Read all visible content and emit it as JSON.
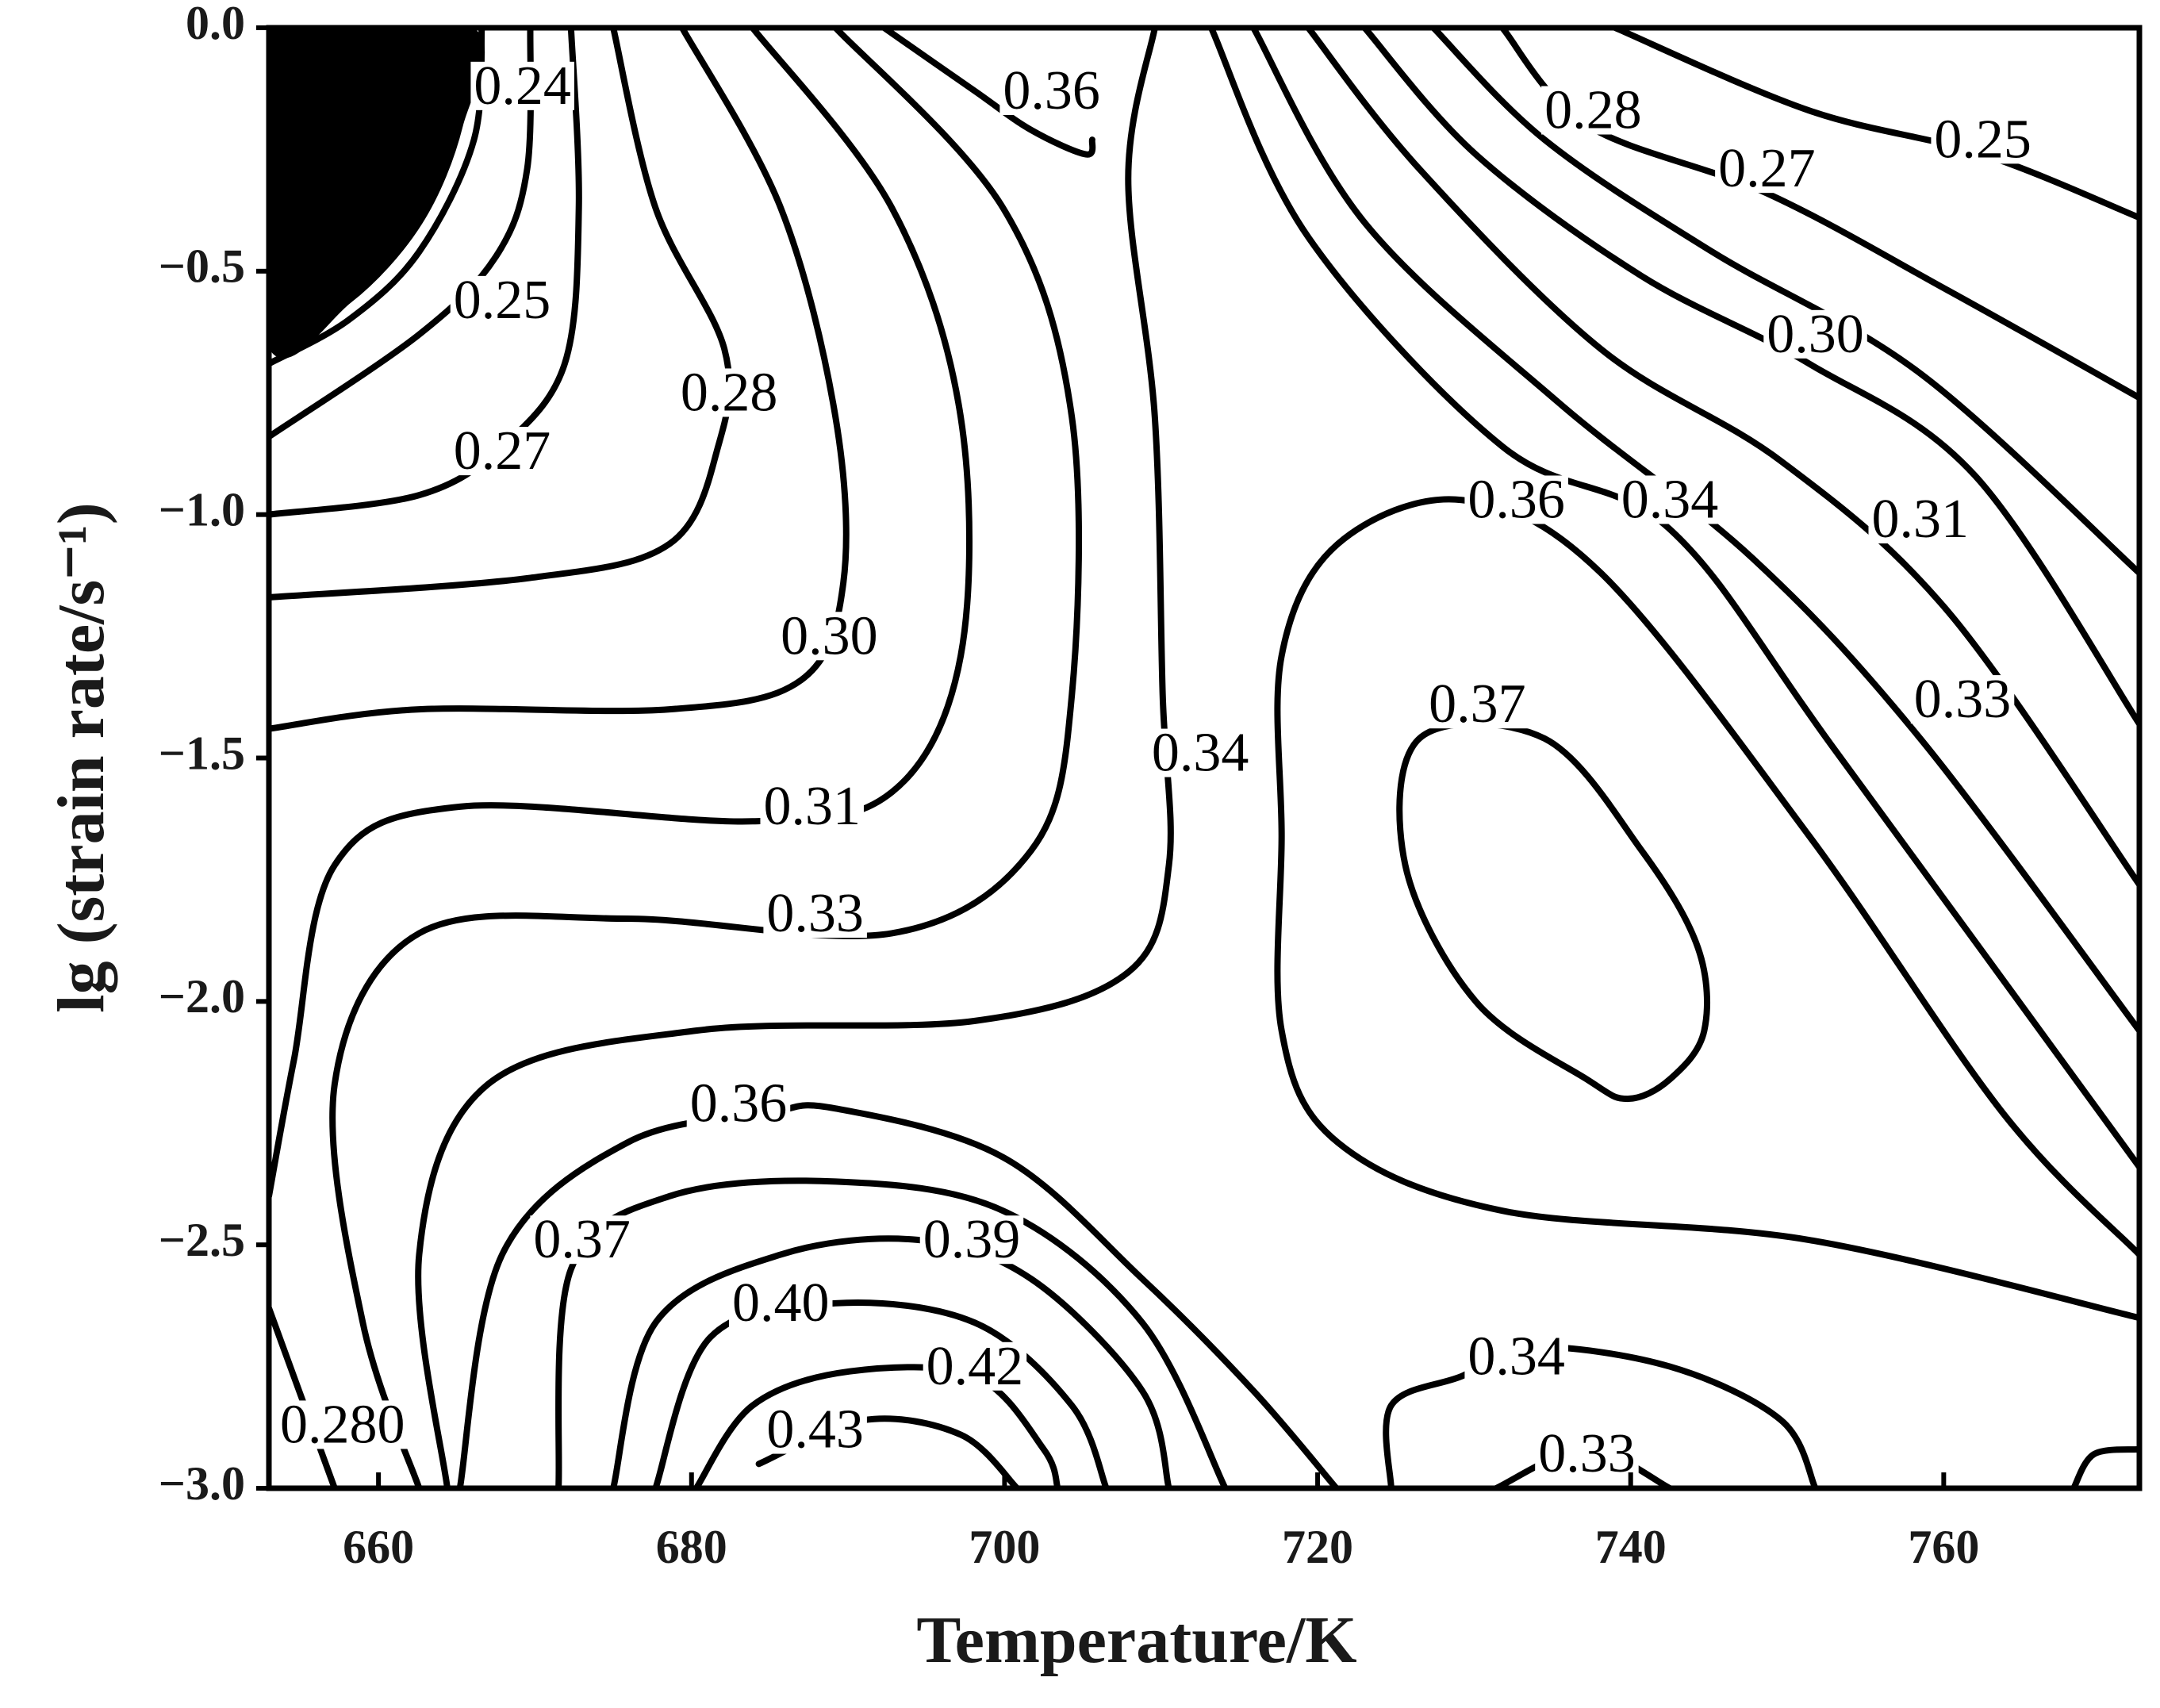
{
  "chart_data": {
    "type": "contour",
    "x_label": "Temperature/K",
    "y_label": "lg (strain rate/s⁻¹)",
    "xlim": [
      653,
      772.5
    ],
    "ylim": [
      -3.0,
      0
    ],
    "xticks": [
      660,
      680,
      700,
      720,
      740,
      760
    ],
    "yticks": [
      {
        "value": 0,
        "label": "0.0"
      },
      {
        "value": -0.5,
        "label": "−0.5"
      },
      {
        "value": -1.0,
        "label": "−1.0"
      },
      {
        "value": -1.5,
        "label": "−1.5"
      },
      {
        "value": -2.0,
        "label": "−2.0"
      },
      {
        "value": -2.5,
        "label": "−2.5"
      },
      {
        "value": -3.0,
        "label": "−3.0"
      }
    ],
    "line_color": "#000000",
    "contours": [
      {
        "fill": "#000000",
        "closed": true,
        "x": [
          653,
          665.7,
          665.2,
          662.6,
          658.1,
          653
        ],
        "y": [
          0,
          0,
          -0.2,
          -0.4,
          -0.56,
          -0.64
        ]
      },
      {
        "level": 0.24,
        "label": "0.24",
        "label_at": [
          669.2,
          -0.13
        ],
        "x": [
          666.6,
          666.1,
          662.6,
          658.1,
          653
        ],
        "y": [
          0,
          -0.23,
          -0.46,
          -0.6,
          -0.69
        ]
      },
      {
        "level": 0.25,
        "label": "0.25",
        "label_at": [
          667.9,
          -0.57
        ],
        "x": [
          669.7,
          669.5,
          667.5,
          662.6,
          653
        ],
        "y": [
          0,
          -0.29,
          -0.47,
          -0.63,
          -0.84
        ]
      },
      {
        "level": 0.27,
        "label": "0.27",
        "label_at": [
          667.9,
          -0.88
        ],
        "x": [
          672.3,
          672.8,
          671.9,
          667.9,
          662.6,
          653
        ],
        "y": [
          0,
          -0.37,
          -0.69,
          -0.86,
          -0.96,
          -1.0
        ]
      },
      {
        "level": 0.28,
        "label": "0.28",
        "label_at": [
          682.4,
          -0.76
        ],
        "x": [
          675.0,
          677.7,
          682.1,
          681.7,
          678.6,
          669.7,
          653
        ],
        "y": [
          0,
          -0.37,
          -0.66,
          -0.86,
          -1.06,
          -1.13,
          -1.17
        ]
      },
      {
        "level": 0.3,
        "label": "0.30",
        "label_at": [
          688.8,
          -1.26
        ],
        "x": [
          679.4,
          685.7,
          689.2,
          689.7,
          687.0,
          678.6,
          662.6,
          653
        ],
        "y": [
          0,
          -0.37,
          -0.8,
          -1.14,
          -1.34,
          -1.4,
          -1.4,
          -1.44
        ]
      },
      {
        "level": 0.31,
        "label": "0.31",
        "label_at": [
          687.7,
          -1.61
        ],
        "x": [
          683.9,
          692.8,
          697.2,
          697.2,
          692.8,
          683.9,
          665.2,
          657.2,
          654.6,
          653
        ],
        "y": [
          0,
          -0.37,
          -0.8,
          -1.29,
          -1.57,
          -1.63,
          -1.6,
          -1.72,
          -2.12,
          -2.4
        ]
      },
      {
        "level": 0.33,
        "label": "0.33",
        "label_at": [
          687.9,
          -1.83
        ],
        "x": [
          689.2,
          699.9,
          704.3,
          704.3,
          701.7,
          692.8,
          675.9,
          662.6,
          657.2,
          659.0,
          662.6
        ],
        "y": [
          0,
          -0.37,
          -0.8,
          -1.37,
          -1.69,
          -1.86,
          -1.83,
          -1.86,
          -2.17,
          -2.66,
          -3.0
        ]
      },
      {
        "level": 0.36,
        "label": "0.36",
        "label_at": [
          703.0,
          -0.14
        ],
        "x": [
          692.3,
          698.1,
          701.7,
          705.2,
          705.6
        ],
        "y": [
          0,
          -0.13,
          -0.21,
          -0.26,
          -0.23
        ]
      },
      {
        "level": 0.34,
        "label": "0.34",
        "label_at": [
          712.5,
          -1.5
        ],
        "x": [
          709.6,
          707.9,
          709.6,
          710.1,
          710.5,
          707.9,
          698.1,
          680.3,
          667.0,
          662.6,
          664.4
        ],
        "y": [
          0,
          -0.31,
          -0.8,
          -1.37,
          -1.72,
          -1.94,
          -2.04,
          -2.06,
          -2.17,
          -2.52,
          -3.0
        ]
      },
      {
        "level": 0.36,
        "label": "0.36",
        "label_at": [
          683.0,
          -2.22
        ],
        "x": [
          665.2,
          667.9,
          675.9,
          684.8,
          689.2,
          699.9,
          708.8,
          715.9,
          721.2
        ],
        "y": [
          -3.0,
          -2.52,
          -2.29,
          -2.23,
          -2.22,
          -2.32,
          -2.57,
          -2.8,
          -3.0
        ]
      },
      {
        "level": 0.37,
        "label": "0.37",
        "label_at": [
          673.0,
          -2.5
        ],
        "x": [
          671.5,
          672.3,
          678.6,
          689.2,
          699.9,
          708.8,
          714.1
        ],
        "y": [
          -3.0,
          -2.55,
          -2.4,
          -2.37,
          -2.43,
          -2.66,
          -3.0
        ]
      },
      {
        "level": 0.39,
        "label": "0.39",
        "label_at": [
          697.9,
          -2.5
        ],
        "x": [
          675.0,
          677.7,
          685.7,
          694.5,
          701.7,
          708.8,
          710.5
        ],
        "y": [
          -3.0,
          -2.66,
          -2.52,
          -2.49,
          -2.57,
          -2.8,
          -3.0
        ]
      },
      {
        "level": 0.4,
        "label": "0.40",
        "label_at": [
          685.7,
          -2.63
        ],
        "x": [
          677.7,
          681.2,
          689.2,
          698.1,
          704.3,
          706.5
        ],
        "y": [
          -3.0,
          -2.69,
          -2.62,
          -2.66,
          -2.83,
          -3.0
        ]
      },
      {
        "level": 0.42,
        "label": "0.42",
        "label_at": [
          698.1,
          -2.76
        ],
        "x": [
          680.3,
          683.9,
          690.1,
          698.1,
          702.5,
          703.4
        ],
        "y": [
          -3.0,
          -2.83,
          -2.76,
          -2.77,
          -2.92,
          -3.0
        ]
      },
      {
        "level": 0.43,
        "label": "0.43",
        "label_at": [
          687.9,
          -2.89
        ],
        "x": [
          684.3,
          691.0,
          697.2,
          700.8
        ],
        "y": [
          -2.95,
          -2.86,
          -2.89,
          -3.0
        ]
      },
      {
        "level": 0.25,
        "label": "0.25",
        "label_at": [
          762.5,
          -0.24
        ],
        "x": [
          739.0,
          751.4,
          762.5,
          772.5
        ],
        "y": [
          0,
          -0.17,
          -0.26,
          -0.39
        ]
      },
      {
        "level": 0.27,
        "label": "0.27",
        "label_at": [
          748.7,
          -0.3
        ],
        "x": [
          731.8,
          737.2,
          748.7,
          760.3,
          772.5
        ],
        "y": [
          0,
          -0.2,
          -0.34,
          -0.54,
          -0.76
        ]
      },
      {
        "level": 0.28,
        "label": "0.28",
        "label_at": [
          737.6,
          -0.18
        ],
        "x": [
          727.4,
          734.5,
          745.2,
          758.5,
          772.5
        ],
        "y": [
          0,
          -0.23,
          -0.46,
          -0.71,
          -1.12
        ]
      },
      {
        "level": 0.3,
        "label": "0.30",
        "label_at": [
          751.8,
          -0.64
        ],
        "x": [
          723.0,
          730.1,
          740.7,
          751.4,
          762.0,
          772.5
        ],
        "y": [
          0,
          -0.26,
          -0.51,
          -0.69,
          -0.92,
          -1.43
        ]
      },
      {
        "level": 0.31,
        "label": "0.31",
        "label_at": [
          758.5,
          -1.02
        ],
        "x": [
          719.4,
          726.5,
          738.1,
          749.6,
          760.3,
          772.5
        ],
        "y": [
          0,
          -0.29,
          -0.66,
          -0.89,
          -1.2,
          -1.76
        ]
      },
      {
        "level": 0.33,
        "label": "0.33",
        "label_at": [
          761.2,
          -1.39
        ],
        "x": [
          715.9,
          723.0,
          735.4,
          747.8,
          758.5,
          772.5
        ],
        "y": [
          0,
          -0.4,
          -0.77,
          -1.09,
          -1.46,
          -2.06
        ]
      },
      {
        "level": 0.34,
        "label": "0.34",
        "label_at": [
          742.5,
          -0.98
        ],
        "x": [
          713.2,
          719.4,
          731.8,
          742.5,
          753.2,
          772.5
        ],
        "y": [
          0,
          -0.43,
          -0.86,
          -1.03,
          -1.49,
          -2.34
        ]
      },
      {
        "level": 0.36,
        "label": "0.36",
        "label_at": [
          732.7,
          -0.98
        ],
        "x": [
          772.5,
          751.4,
          731.8,
          721.3,
          717.7,
          717.7,
          717.7,
          721.3,
          729.2,
          738.1,
          751.4,
          763.8,
          772.5
        ],
        "y": [
          -2.65,
          -2.49,
          -2.43,
          -2.29,
          -2.06,
          -1.66,
          -1.29,
          -1.06,
          -0.97,
          -1.12,
          -1.66,
          -2.23,
          -2.52
        ]
      },
      {
        "level": 0.37,
        "label": "0.37",
        "label_at": [
          730.2,
          -1.4
        ],
        "closed": true,
        "x": [
          726.5,
          725.6,
          730.1,
          737.2,
          739.8,
          742.5,
          744.7,
          744.3,
          740.7,
          734.5
        ],
        "y": [
          -1.46,
          -1.72,
          -2.0,
          -2.16,
          -2.2,
          -2.16,
          -2.06,
          -1.89,
          -1.69,
          -1.46
        ]
      },
      {
        "level": 0.34,
        "label": "0.34",
        "label_at": [
          732.7,
          -2.74
        ],
        "x": [
          724.7,
          724.7,
          729.2,
          733.6,
          742.5,
          749.6,
          751.8
        ],
        "y": [
          -3.0,
          -2.83,
          -2.77,
          -2.71,
          -2.75,
          -2.86,
          -3.0
        ]
      },
      {
        "level": 0.33,
        "label": "0.33",
        "label_at": [
          737.2,
          -2.94
        ],
        "x": [
          731.4,
          737.2,
          742.5
        ],
        "y": [
          -3.0,
          -2.92,
          -3.0
        ]
      },
      {
        "x": [
          768.3,
          769.6,
          772.5
        ],
        "y": [
          -3.0,
          -2.93,
          -2.92
        ]
      },
      {
        "level": 0.28,
        "label": "0.280",
        "label_at": [
          657.7,
          -2.88
        ],
        "x": [
          653,
          657.2
        ],
        "y": [
          -2.63,
          -3.0
        ]
      }
    ]
  }
}
